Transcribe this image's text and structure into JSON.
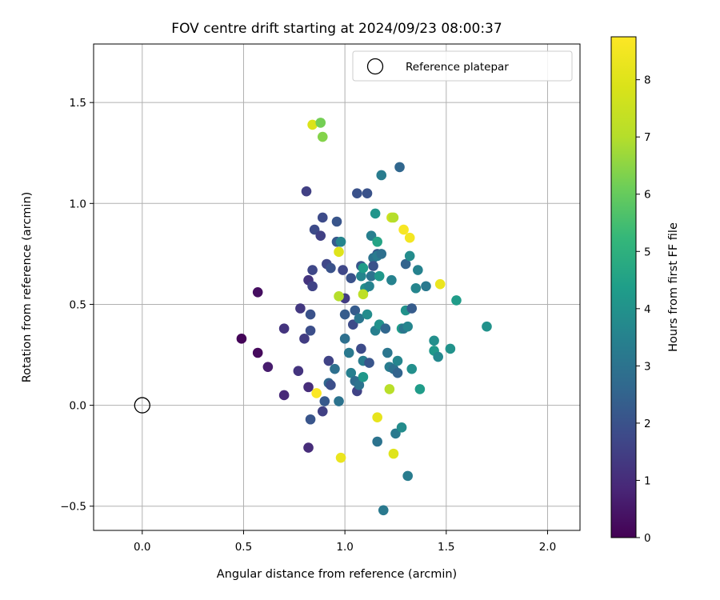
{
  "chart_data": {
    "type": "scatter",
    "title": "FOV centre drift starting at 2024/09/23 08:00:37",
    "xlabel": "Angular distance from reference (arcmin)",
    "ylabel": "Rotation from reference (arcmin)",
    "xlim": [
      -0.24,
      2.16
    ],
    "ylim": [
      -0.62,
      1.79
    ],
    "xticks": [
      0.0,
      0.5,
      1.0,
      1.5,
      2.0
    ],
    "xtick_labels": [
      "0.0",
      "0.5",
      "1.0",
      "1.5",
      "2.0"
    ],
    "yticks": [
      -0.5,
      0.0,
      0.5,
      1.0,
      1.5
    ],
    "ytick_labels": [
      "−0.5",
      "0.0",
      "0.5",
      "1.0",
      "1.5"
    ],
    "grid": true,
    "legend": {
      "position": "top-right",
      "label": "Reference platepar"
    },
    "reference_point": {
      "x": 0.0,
      "y": 0.0
    },
    "colormap": "viridis",
    "colorbar": {
      "label": "Hours from first FF file",
      "range": [
        0,
        8.75
      ],
      "ticks": [
        0,
        1,
        2,
        3,
        4,
        5,
        6,
        7,
        8
      ],
      "tick_labels": [
        "0",
        "1",
        "2",
        "3",
        "4",
        "5",
        "6",
        "7",
        "8"
      ]
    },
    "point_fields": [
      "x",
      "y",
      "hours"
    ],
    "points": [
      [
        0.49,
        0.33,
        0.1
      ],
      [
        0.57,
        0.56,
        0.3
      ],
      [
        0.57,
        0.26,
        0.2
      ],
      [
        0.62,
        0.19,
        0.6
      ],
      [
        0.7,
        0.05,
        0.9
      ],
      [
        0.7,
        0.38,
        1.2
      ],
      [
        0.77,
        0.17,
        1.2
      ],
      [
        0.78,
        0.48,
        1.3
      ],
      [
        0.8,
        0.33,
        1.4
      ],
      [
        0.81,
        1.06,
        1.5
      ],
      [
        0.82,
        0.09,
        1.0
      ],
      [
        0.82,
        -0.21,
        1.0
      ],
      [
        0.82,
        0.62,
        1.2
      ],
      [
        0.83,
        0.45,
        2.0
      ],
      [
        0.83,
        0.37,
        1.9
      ],
      [
        0.83,
        -0.07,
        2.1
      ],
      [
        0.84,
        0.59,
        1.6
      ],
      [
        0.84,
        0.67,
        1.7
      ],
      [
        0.85,
        0.87,
        1.8
      ],
      [
        0.88,
        0.84,
        1.5
      ],
      [
        0.89,
        0.93,
        1.8
      ],
      [
        0.89,
        -0.03,
        1.5
      ],
      [
        0.9,
        0.02,
        2.2
      ],
      [
        0.91,
        0.7,
        1.7
      ],
      [
        0.92,
        0.22,
        1.6
      ],
      [
        0.92,
        0.11,
        2.6
      ],
      [
        0.93,
        0.1,
        1.9
      ],
      [
        0.93,
        0.68,
        2.0
      ],
      [
        0.95,
        0.18,
        2.9
      ],
      [
        0.96,
        0.91,
        2.1
      ],
      [
        0.96,
        0.81,
        2.2
      ],
      [
        0.97,
        0.02,
        3.0
      ],
      [
        0.98,
        0.81,
        3.6
      ],
      [
        0.99,
        0.67,
        1.7
      ],
      [
        1.0,
        0.53,
        1.4
      ],
      [
        1.0,
        0.33,
        2.9
      ],
      [
        1.0,
        0.45,
        2.3
      ],
      [
        1.02,
        0.26,
        3.2
      ],
      [
        1.03,
        0.16,
        3.4
      ],
      [
        1.03,
        0.63,
        2.0
      ],
      [
        1.04,
        0.4,
        1.8
      ],
      [
        1.05,
        0.47,
        2.3
      ],
      [
        1.05,
        0.12,
        2.8
      ],
      [
        1.06,
        1.05,
        2.0
      ],
      [
        1.06,
        0.07,
        1.6
      ],
      [
        1.07,
        0.43,
        3.1
      ],
      [
        1.07,
        0.1,
        3.0
      ],
      [
        1.08,
        0.64,
        3.6
      ],
      [
        1.08,
        0.28,
        1.8
      ],
      [
        1.08,
        0.69,
        2.1
      ],
      [
        1.09,
        0.68,
        4.3
      ],
      [
        1.09,
        0.14,
        4.2
      ],
      [
        1.09,
        0.22,
        3.3
      ],
      [
        1.1,
        0.58,
        3.9
      ],
      [
        1.11,
        1.05,
        2.0
      ],
      [
        1.11,
        0.45,
        3.8
      ],
      [
        1.12,
        0.21,
        2.1
      ],
      [
        1.12,
        0.59,
        3.5
      ],
      [
        1.13,
        0.64,
        3.0
      ],
      [
        1.13,
        0.84,
        3.4
      ],
      [
        1.14,
        0.73,
        3.0
      ],
      [
        1.14,
        0.69,
        2.0
      ],
      [
        1.15,
        0.95,
        4.1
      ],
      [
        1.15,
        0.37,
        3.4
      ],
      [
        1.16,
        0.81,
        4.6
      ],
      [
        1.16,
        0.75,
        2.3
      ],
      [
        1.16,
        0.74,
        3.3
      ],
      [
        1.16,
        -0.18,
        3.0
      ],
      [
        1.17,
        0.4,
        4.0
      ],
      [
        1.17,
        0.64,
        4.2
      ],
      [
        1.18,
        0.75,
        2.9
      ],
      [
        1.18,
        1.14,
        3.3
      ],
      [
        1.19,
        -0.52,
        3.2
      ],
      [
        1.2,
        0.38,
        2.6
      ],
      [
        1.21,
        0.26,
        3.1
      ],
      [
        1.22,
        0.19,
        3.3
      ],
      [
        1.23,
        0.62,
        3.5
      ],
      [
        1.23,
        0.93,
        7.6
      ],
      [
        1.24,
        0.93,
        7.0
      ],
      [
        1.24,
        0.18,
        2.9
      ],
      [
        1.25,
        -0.14,
        3.2
      ],
      [
        1.26,
        0.22,
        3.6
      ],
      [
        1.26,
        0.16,
        2.5
      ],
      [
        1.27,
        1.18,
        2.6
      ],
      [
        1.28,
        -0.11,
        3.8
      ],
      [
        1.28,
        0.38,
        4.4
      ],
      [
        1.29,
        0.38,
        3.1
      ],
      [
        1.3,
        0.47,
        4.0
      ],
      [
        1.3,
        0.7,
        2.5
      ],
      [
        1.31,
        0.39,
        3.6
      ],
      [
        1.31,
        -0.35,
        3.3
      ],
      [
        1.32,
        0.74,
        3.8
      ],
      [
        1.33,
        0.48,
        2.3
      ],
      [
        1.33,
        0.18,
        3.9
      ],
      [
        1.35,
        0.58,
        3.6
      ],
      [
        1.36,
        0.67,
        3.5
      ],
      [
        1.37,
        0.08,
        4.3
      ],
      [
        1.4,
        0.59,
        3.2
      ],
      [
        1.44,
        0.32,
        3.9
      ],
      [
        1.44,
        0.27,
        4.2
      ],
      [
        1.46,
        0.24,
        3.7
      ],
      [
        1.52,
        0.28,
        4.0
      ],
      [
        1.55,
        0.52,
        4.3
      ],
      [
        1.7,
        0.39,
        4.0
      ],
      [
        0.84,
        1.39,
        7.9
      ],
      [
        0.88,
        1.4,
        6.2
      ],
      [
        0.89,
        1.33,
        6.4
      ],
      [
        0.86,
        0.06,
        8.7
      ],
      [
        0.97,
        0.54,
        7.0
      ],
      [
        0.97,
        0.76,
        8.0
      ],
      [
        0.98,
        -0.26,
        8.3
      ],
      [
        1.09,
        0.55,
        7.2
      ],
      [
        1.16,
        -0.06,
        8.2
      ],
      [
        1.22,
        0.08,
        7.1
      ],
      [
        1.24,
        -0.24,
        8.0
      ],
      [
        1.29,
        0.87,
        8.6
      ],
      [
        1.32,
        0.83,
        8.5
      ],
      [
        1.47,
        0.6,
        8.3
      ]
    ]
  }
}
